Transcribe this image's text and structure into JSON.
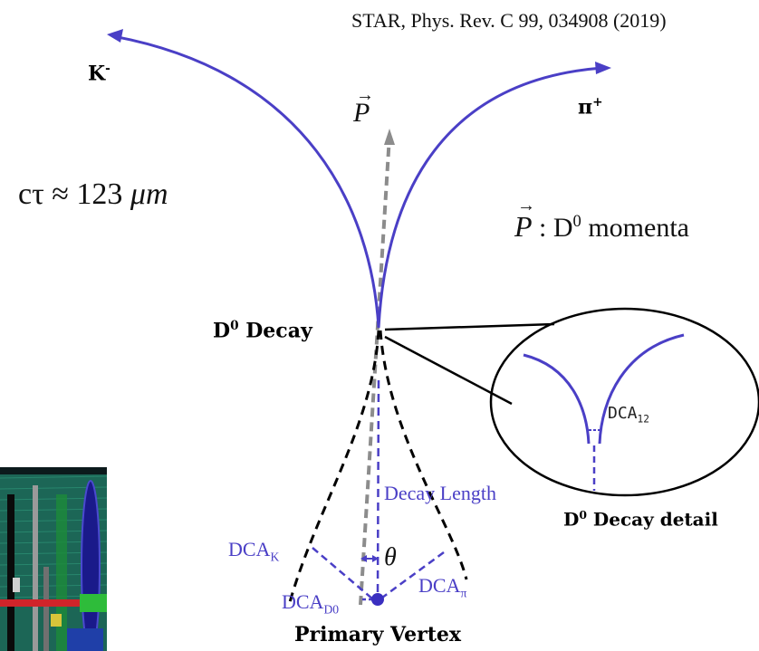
{
  "citation": "STAR, Phys. Rev. C 99, 034908 (2019)",
  "particles": {
    "kaon": {
      "base": "K",
      "sup": "-"
    },
    "pion": {
      "base": "π",
      "sup": "+"
    }
  },
  "momentum": {
    "symbol": "P",
    "legend_text": " : D",
    "legend_sup": "0",
    "legend_suffix": " momenta"
  },
  "lifetime": {
    "prefix": "cτ ≈ 123 ",
    "unit": "μm"
  },
  "labels": {
    "decay_base": "D",
    "decay_sup": "0",
    "decay_suffix": " Decay",
    "decay_length": "Decay Length",
    "theta": "θ",
    "primary_vertex": "Primary Vertex",
    "detail_base": "D",
    "detail_sup": "0",
    "detail_suffix": " Decay detail"
  },
  "dca": {
    "k_base": "DCA",
    "k_sub": "K",
    "pi_base": "DCA",
    "pi_sub": "π",
    "d0_base": "DCA",
    "d0_sub": "D0",
    "detail_base": "DCA",
    "detail_sub": "12"
  },
  "colors": {
    "track": "#4a3fc6",
    "momentum_arrow": "#8c8c8c",
    "dashed": "#000000"
  }
}
